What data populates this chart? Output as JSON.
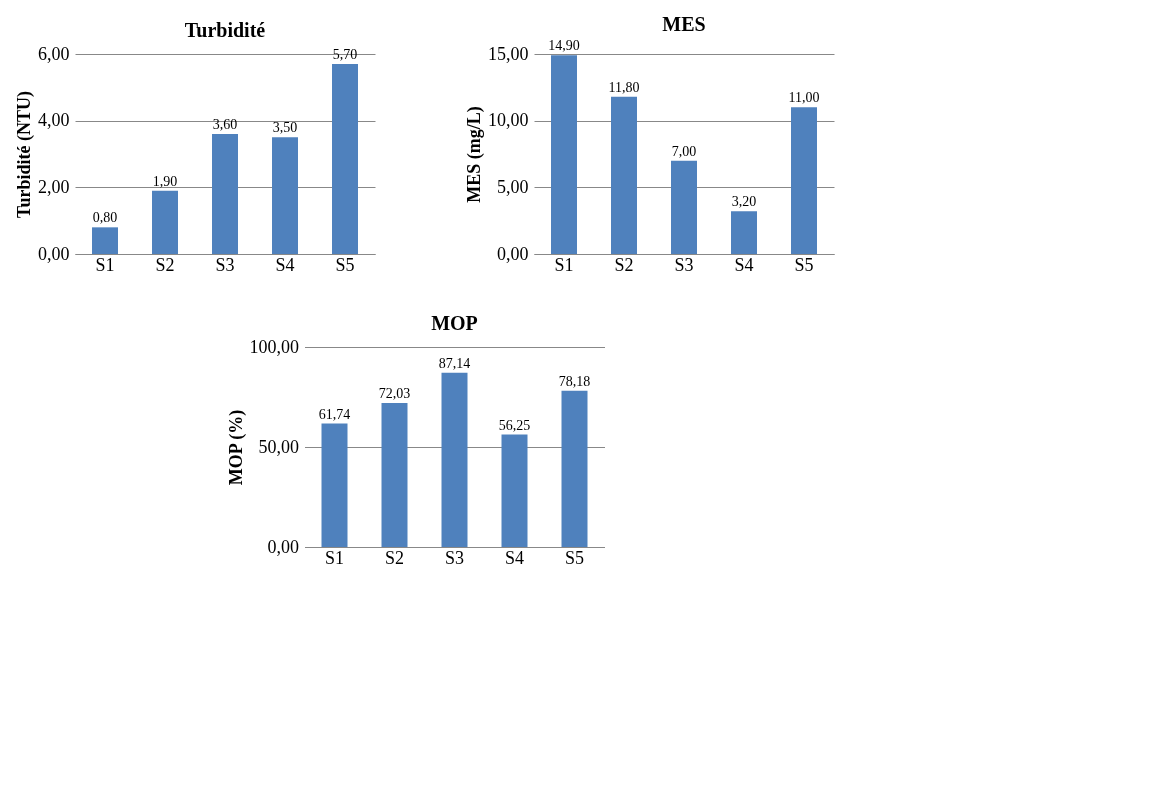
{
  "chart_data": [
    {
      "type": "bar",
      "title": "Turbidité",
      "ylabel": "Turbidité (NTU)",
      "categories": [
        "S1",
        "S2",
        "S3",
        "S4",
        "S5"
      ],
      "values": [
        0.8,
        1.9,
        3.6,
        3.5,
        5.7
      ],
      "value_labels": [
        "0,80",
        "1,90",
        "3,60",
        "3,50",
        "5,70"
      ],
      "color": "#4f81bd",
      "ylim": [
        0,
        6
      ],
      "yticks": [
        {
          "value": 0,
          "label": "0,00"
        },
        {
          "value": 2,
          "label": "2,00"
        },
        {
          "value": 4,
          "label": "4,00"
        },
        {
          "value": 6,
          "label": "6,00"
        }
      ],
      "grid": "y"
    },
    {
      "type": "bar",
      "title": "MES",
      "ylabel": "MES (mg/L)",
      "categories": [
        "S1",
        "S2",
        "S3",
        "S4",
        "S5"
      ],
      "values": [
        14.9,
        11.8,
        7.0,
        3.2,
        11.0
      ],
      "value_labels": [
        "14,90",
        "11,80",
        "7,00",
        "3,20",
        "11,00"
      ],
      "color": "#4f81bd",
      "ylim": [
        0,
        15
      ],
      "yticks": [
        {
          "value": 0,
          "label": "0,00"
        },
        {
          "value": 5,
          "label": "5,00"
        },
        {
          "value": 10,
          "label": "10,00"
        },
        {
          "value": 15,
          "label": "15,00"
        }
      ],
      "grid": "y"
    },
    {
      "type": "bar",
      "title": "MOP",
      "ylabel": "MOP (%)",
      "categories": [
        "S1",
        "S2",
        "S3",
        "S4",
        "S5"
      ],
      "values": [
        61.74,
        72.03,
        87.14,
        56.25,
        78.18
      ],
      "value_labels": [
        "61,74",
        "72,03",
        "87,14",
        "56,25",
        "78,18"
      ],
      "color": "#4f81bd",
      "ylim": [
        0,
        100
      ],
      "yticks": [
        {
          "value": 0,
          "label": "0,00"
        },
        {
          "value": 50,
          "label": "50,00"
        },
        {
          "value": 100,
          "label": "100,00"
        }
      ],
      "grid": "y"
    }
  ]
}
